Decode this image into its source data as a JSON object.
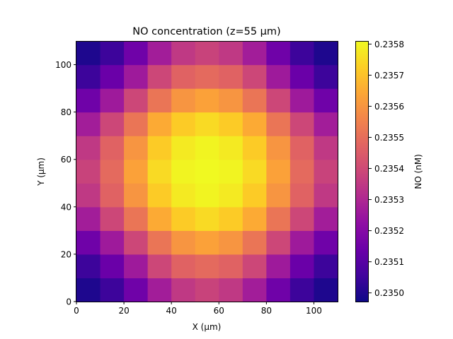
{
  "chart_data": {
    "type": "heatmap",
    "title": "NO concentration (z=55 µm)",
    "xlabel": "X (µm)",
    "ylabel": "Y (µm)",
    "colorbar_label": "NO (nM)",
    "colormap": "plasma",
    "xlim": [
      0,
      110
    ],
    "ylim": [
      0,
      110
    ],
    "cell_size": 10,
    "xticks": [
      0,
      20,
      40,
      60,
      80,
      100
    ],
    "yticks": [
      0,
      20,
      40,
      60,
      80,
      100
    ],
    "clim": [
      0.234972,
      0.23581
    ],
    "colorbar_ticks": [
      0.235,
      0.2351,
      0.2352,
      0.2353,
      0.2354,
      0.2355,
      0.2356,
      0.2357,
      0.2358
    ],
    "colorbar_ticklabels": [
      "0.2350",
      "0.2351",
      "0.2352",
      "0.2353",
      "0.2354",
      "0.2355",
      "0.2356",
      "0.2357",
      "0.2358"
    ],
    "grid": false,
    "x_centers": [
      5,
      15,
      25,
      35,
      45,
      55,
      65,
      75,
      85,
      95,
      105
    ],
    "y_centers": [
      5,
      15,
      25,
      35,
      45,
      55,
      65,
      75,
      85,
      95,
      105
    ],
    "values": [
      [
        0.235,
        0.23505,
        0.23515,
        0.23527,
        0.23535,
        0.23538,
        0.23535,
        0.23527,
        0.23515,
        0.23505,
        0.235
      ],
      [
        0.23505,
        0.23514,
        0.23526,
        0.23539,
        0.23547,
        0.23549,
        0.23547,
        0.23539,
        0.23526,
        0.23514,
        0.23505
      ],
      [
        0.23515,
        0.23526,
        0.23539,
        0.23552,
        0.2356,
        0.23563,
        0.2356,
        0.23552,
        0.23539,
        0.23526,
        0.23515
      ],
      [
        0.23527,
        0.23539,
        0.23552,
        0.23565,
        0.23572,
        0.23575,
        0.23572,
        0.23565,
        0.23552,
        0.23539,
        0.23527
      ],
      [
        0.23535,
        0.23547,
        0.2356,
        0.23572,
        0.23578,
        0.2358,
        0.23578,
        0.23572,
        0.2356,
        0.23547,
        0.23535
      ],
      [
        0.23538,
        0.23549,
        0.23563,
        0.23575,
        0.2358,
        0.23581,
        0.2358,
        0.23575,
        0.23563,
        0.23549,
        0.23538
      ],
      [
        0.23535,
        0.23547,
        0.2356,
        0.23572,
        0.23578,
        0.2358,
        0.23578,
        0.23572,
        0.2356,
        0.23547,
        0.23535
      ],
      [
        0.23527,
        0.23539,
        0.23552,
        0.23565,
        0.23572,
        0.23575,
        0.23572,
        0.23565,
        0.23552,
        0.23539,
        0.23527
      ],
      [
        0.23515,
        0.23526,
        0.23539,
        0.23552,
        0.2356,
        0.23563,
        0.2356,
        0.23552,
        0.23539,
        0.23526,
        0.23515
      ],
      [
        0.23505,
        0.23514,
        0.23526,
        0.23539,
        0.23547,
        0.23549,
        0.23547,
        0.23539,
        0.23526,
        0.23514,
        0.23505
      ],
      [
        0.235,
        0.23505,
        0.23515,
        0.23527,
        0.23535,
        0.23538,
        0.23535,
        0.23527,
        0.23515,
        0.23505,
        0.235
      ]
    ]
  }
}
